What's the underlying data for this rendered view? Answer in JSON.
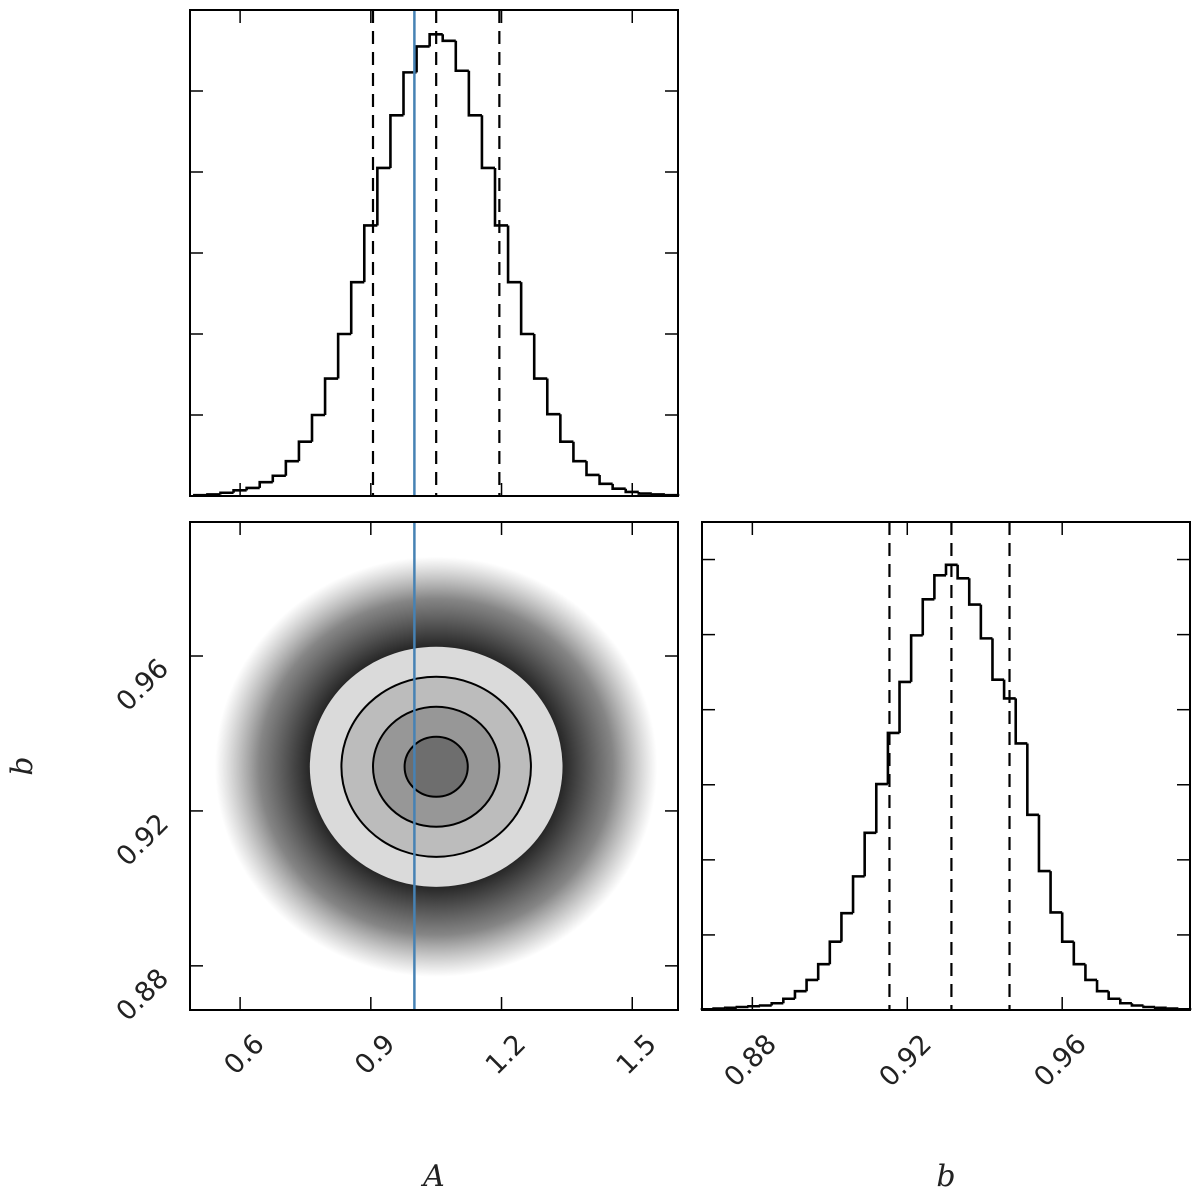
{
  "chart_data": [
    {
      "type": "histogram",
      "xlim": [
        0.485,
        1.605
      ],
      "xticks": [
        0.6,
        0.9,
        1.2,
        1.5
      ],
      "ylim": [
        0,
        6
      ],
      "yticks": [
        1,
        2,
        3,
        4,
        5
      ],
      "bins": [
        0.495,
        0.525,
        0.555,
        0.585,
        0.615,
        0.645,
        0.675,
        0.705,
        0.735,
        0.765,
        0.795,
        0.825,
        0.855,
        0.885,
        0.915,
        0.945,
        0.975,
        1.005,
        1.035,
        1.065,
        1.095,
        1.125,
        1.155,
        1.185,
        1.215,
        1.245,
        1.275,
        1.305,
        1.335,
        1.365,
        1.395,
        1.425,
        1.455,
        1.485,
        1.515,
        1.545,
        1.575,
        1.605
      ],
      "values": [
        0.01,
        0.02,
        0.04,
        0.07,
        0.1,
        0.17,
        0.25,
        0.43,
        0.67,
        1.0,
        1.45,
        2.0,
        2.64,
        3.34,
        4.05,
        4.7,
        5.23,
        5.55,
        5.7,
        5.62,
        5.25,
        4.7,
        4.05,
        3.34,
        2.64,
        2.0,
        1.45,
        1.01,
        0.67,
        0.43,
        0.26,
        0.15,
        0.09,
        0.05,
        0.03,
        0.02,
        0.01
      ],
      "quantiles": [
        0.905,
        1.05,
        1.195
      ],
      "truth": 1.0,
      "truth_color": "#4682b4",
      "color": "#000000"
    },
    {
      "type": "hist2d",
      "xlabel": "A",
      "ylabel": "b",
      "xlim": [
        0.485,
        1.605
      ],
      "xticks": [
        0.6,
        0.9,
        1.2,
        1.5
      ],
      "ylim": [
        0.8686,
        0.9946
      ],
      "yticks": [
        0.88,
        0.92,
        0.96
      ],
      "mean": [
        1.05,
        0.9314
      ],
      "sigma": [
        0.145,
        0.0155
      ],
      "levels": [
        0.5,
        1,
        1.5,
        2,
        3.5
      ],
      "truth": 1.0,
      "truth_color": "#4682b4",
      "color": "#000000"
    },
    {
      "type": "histogram",
      "xlabel": "b",
      "xlim": [
        0.867,
        0.993
      ],
      "xticks": [
        0.88,
        0.92,
        0.96
      ],
      "ylim": [
        0,
        6.5
      ],
      "yticks": [
        1,
        2,
        3,
        4,
        5,
        6
      ],
      "bins": [
        0.867,
        0.87,
        0.873,
        0.876,
        0.879,
        0.882,
        0.885,
        0.888,
        0.891,
        0.894,
        0.897,
        0.9,
        0.903,
        0.906,
        0.909,
        0.912,
        0.915,
        0.918,
        0.921,
        0.924,
        0.927,
        0.93,
        0.933,
        0.936,
        0.939,
        0.942,
        0.945,
        0.948,
        0.951,
        0.954,
        0.957,
        0.96,
        0.963,
        0.966,
        0.969,
        0.972,
        0.975,
        0.978,
        0.981,
        0.984,
        0.987,
        0.99,
        0.993
      ],
      "values": [
        0.01,
        0.02,
        0.03,
        0.04,
        0.05,
        0.06,
        0.09,
        0.15,
        0.25,
        0.4,
        0.61,
        0.91,
        1.29,
        1.78,
        2.36,
        3.01,
        3.69,
        4.37,
        4.99,
        5.47,
        5.79,
        5.93,
        5.75,
        5.4,
        4.95,
        4.4,
        4.15,
        3.55,
        2.6,
        1.85,
        1.3,
        0.91,
        0.61,
        0.4,
        0.25,
        0.15,
        0.09,
        0.06,
        0.04,
        0.03,
        0.02,
        0.01
      ],
      "quantiles": [
        0.9154,
        0.9314,
        0.9464
      ],
      "color": "#000000"
    }
  ]
}
